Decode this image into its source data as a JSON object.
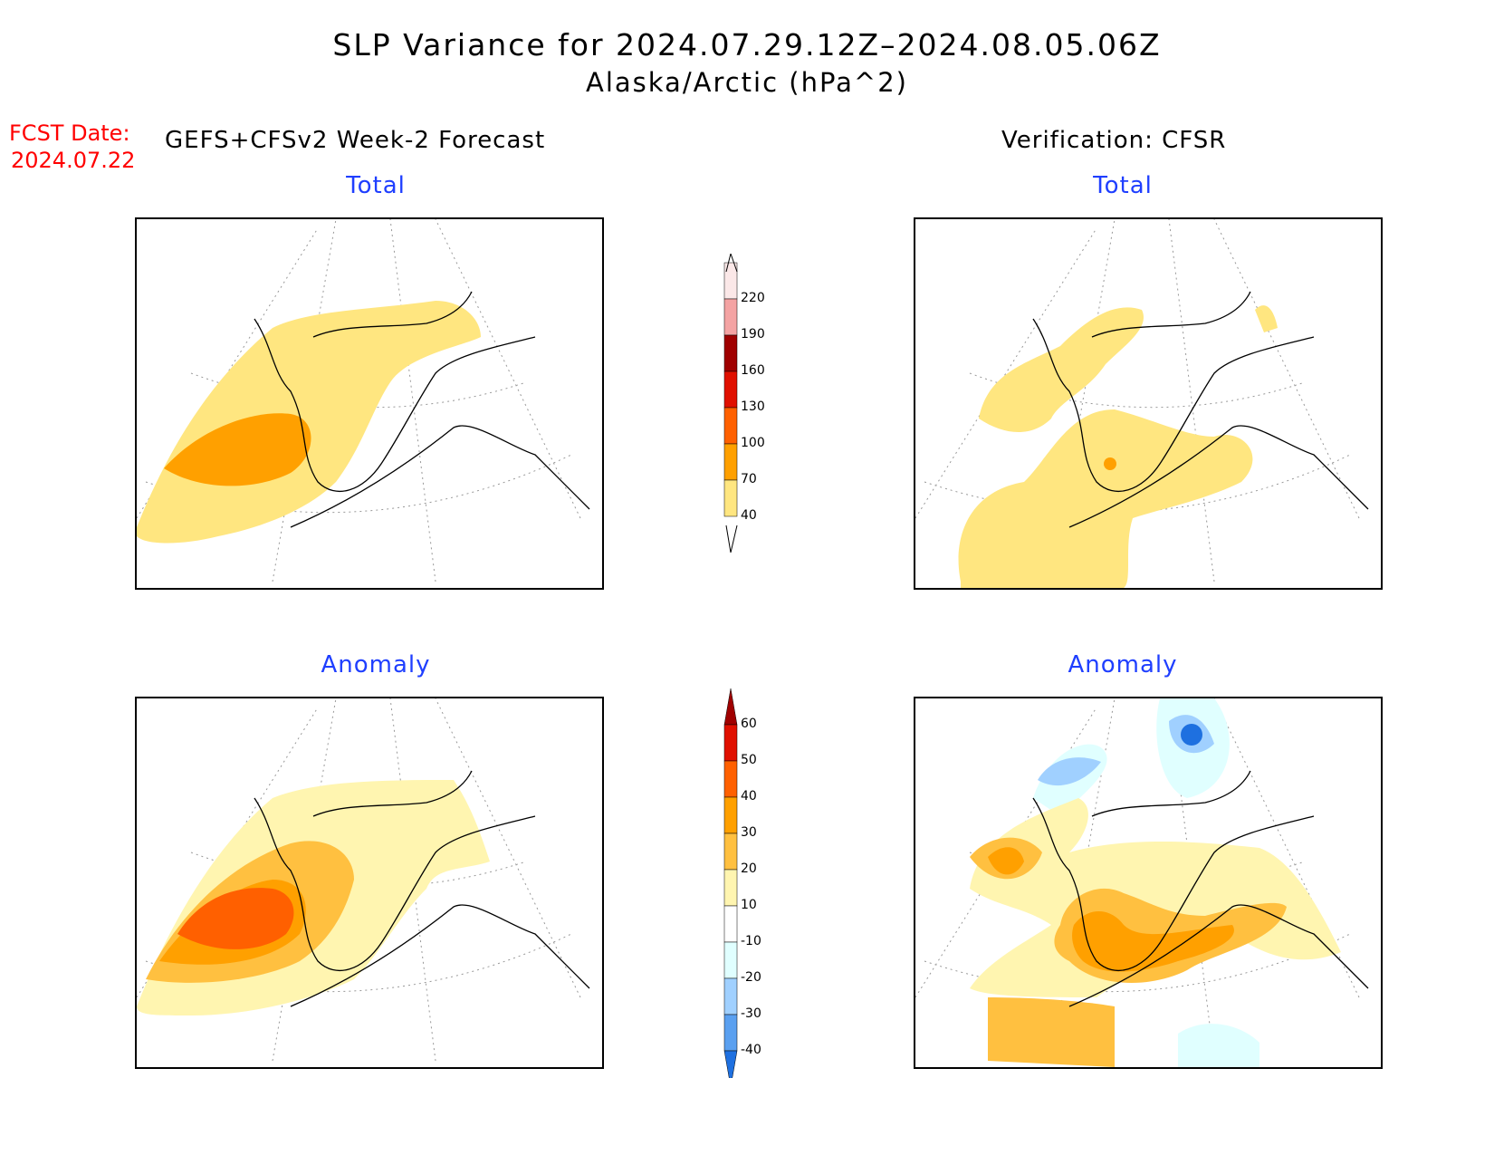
{
  "title": "SLP Variance for 2024.07.29.12Z–2024.08.05.06Z",
  "subtitle": "Alaska/Arctic (hPa^2)",
  "fcst_date_label": "FCST Date:",
  "fcst_date_value": "2024.07.22",
  "forecast_header": "GEFS+CFSv2 Week-2 Forecast",
  "verification_header": "Verification: CFSR",
  "panels": {
    "forecast_total": "Total",
    "forecast_anomaly": "Anomaly",
    "verification_total": "Total",
    "verification_anomaly": "Anomaly"
  },
  "colorbar_total": {
    "labels": [
      "220",
      "190",
      "160",
      "130",
      "100",
      "70",
      "40"
    ],
    "colors": [
      "#fbe8e8",
      "#f4a3a3",
      "#a00000",
      "#e01000",
      "#ff6000",
      "#ffa000",
      "#ffe680"
    ]
  },
  "colorbar_anomaly": {
    "labels": [
      "60",
      "50",
      "40",
      "30",
      "20",
      "10",
      "-10",
      "-20",
      "-30",
      "-40"
    ],
    "colors": [
      "#a00000",
      "#e01000",
      "#ff6000",
      "#ffa000",
      "#ffc040",
      "#fff5b0",
      "#ffffff",
      "#e0ffff",
      "#a0d0ff",
      "#5aa0f0",
      "#1e70e0"
    ]
  }
}
